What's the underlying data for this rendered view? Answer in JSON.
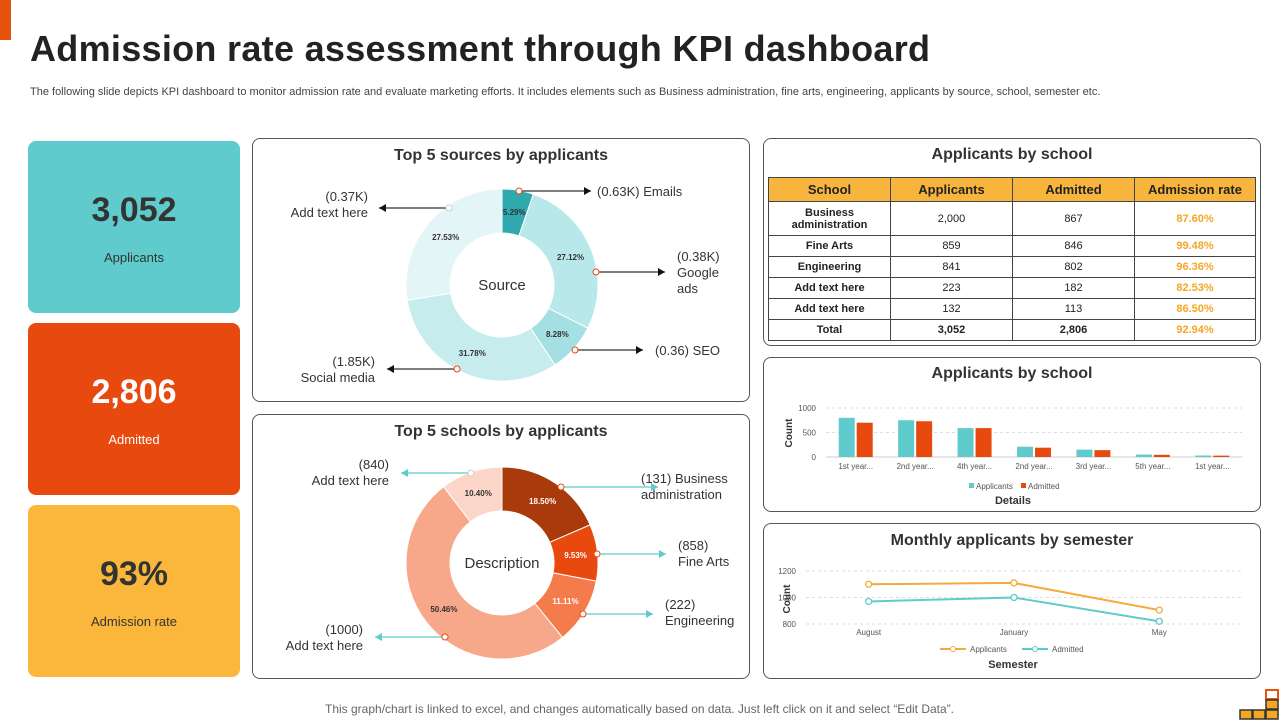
{
  "title": "Admission rate assessment through KPI dashboard",
  "subtitle": "The following slide depicts KPI dashboard to monitor admission rate and evaluate marketing efforts. It includes elements such as Business administration, fine arts, engineering, applicants by source, school, semester etc.",
  "footer": "This graph/chart is linked to excel,  and changes automatically based on data. Just left click on it and select “Edit Data”.",
  "colors": {
    "accent": "#e8520f",
    "teal": "#5fcbcc",
    "orange": "#e8490f",
    "yellow": "#fbb73b"
  },
  "kpis": [
    {
      "value": "3,052",
      "label": "Applicants",
      "color": "#5fcbcc"
    },
    {
      "value": "2,806",
      "label": "Admitted",
      "color": "#e8490f"
    },
    {
      "value": "93%",
      "label": "Admission rate",
      "color": "#fbb73b"
    }
  ],
  "table": {
    "title": "Applicants by school",
    "headers": [
      "School",
      "Applicants",
      "Admitted",
      "Admission rate"
    ],
    "rows": [
      [
        "Business administration",
        "2,000",
        "867",
        "87.60%"
      ],
      [
        "Fine Arts",
        "859",
        "846",
        "99.48%"
      ],
      [
        "Engineering",
        "841",
        "802",
        "96.36%"
      ],
      [
        "Add text here",
        "223",
        "182",
        "82.53%"
      ],
      [
        "Add text here",
        "132",
        "113",
        "86.50%"
      ],
      [
        "Total",
        "3,052",
        "2,806",
        "92.94%"
      ]
    ]
  },
  "chart_data": [
    {
      "type": "pie",
      "title": "Top 5 sources  by applicants",
      "center_label": "Source",
      "categories": [
        "Emails",
        "Google ads",
        "SEO",
        "Social media",
        "Add text here"
      ],
      "values": [
        5.29,
        27.12,
        8.28,
        31.78,
        27.53
      ],
      "slice_labels": [
        "5.29%",
        "27.12%",
        "8.28%",
        "31.78%",
        "27.53%"
      ],
      "callouts": [
        {
          "value": "(0.63K)",
          "name": "Emails"
        },
        {
          "value": "(0.38K)",
          "name": "Google ads"
        },
        {
          "value": "(0.36)",
          "name": "SEO"
        },
        {
          "value": "(1.85K)",
          "name": "Social media"
        },
        {
          "value": "(0.37K)",
          "name": "Add text here"
        }
      ],
      "colors": [
        "#2fa9ad",
        "#b8e8ea",
        "#a4dfe2",
        "#c7ecee",
        "#e3f5f6"
      ]
    },
    {
      "type": "pie",
      "title": "Top 5 schools  by applicants",
      "center_label": "Description",
      "categories": [
        "Business administration",
        "Fine Arts",
        "Engineering",
        "Add text here",
        "Add text here"
      ],
      "values": [
        18.5,
        9.53,
        11.11,
        50.46,
        10.4
      ],
      "slice_labels": [
        "18.50%",
        "9.53%",
        "11.11%",
        "50.46%",
        "10.40%"
      ],
      "callouts": [
        {
          "value": "(131)",
          "name": "Business administration"
        },
        {
          "value": "(858)",
          "name": "Fine Arts"
        },
        {
          "value": "(222)",
          "name": "Engineering"
        },
        {
          "value": "(1000)",
          "name": "Add text here"
        },
        {
          "value": "(840)",
          "name": "Add text here"
        }
      ],
      "colors": [
        "#a93a0c",
        "#e8490f",
        "#f47c4c",
        "#f7a78a",
        "#fbd6c9"
      ]
    },
    {
      "type": "bar",
      "title": "Applicants by school",
      "xlabel": "Details",
      "ylabel": "Count",
      "categories": [
        "1st year...",
        "2nd year...",
        "4th year...",
        "2nd year...",
        "3rd year...",
        "5th year...",
        "1st year..."
      ],
      "series": [
        {
          "name": "Applicants",
          "values": [
            800,
            750,
            590,
            210,
            150,
            50,
            30
          ],
          "color": "#5fcbcc"
        },
        {
          "name": "Admitted",
          "values": [
            700,
            730,
            590,
            190,
            140,
            45,
            28
          ],
          "color": "#e8490f"
        }
      ],
      "ylim": [
        0,
        1000
      ],
      "yticks": [
        0,
        500,
        1000
      ]
    },
    {
      "type": "line",
      "title": "Monthly applicants by semester",
      "xlabel": "Semester",
      "ylabel": "Count",
      "categories": [
        "August",
        "January",
        "May"
      ],
      "series": [
        {
          "name": "Applicants",
          "values": [
            1100,
            1110,
            905
          ],
          "color": "#f8a93b"
        },
        {
          "name": "Admitted",
          "values": [
            970,
            1000,
            820
          ],
          "color": "#5fcbcc"
        }
      ],
      "ylim": [
        800,
        1200
      ],
      "yticks": [
        800,
        1000,
        1200
      ]
    }
  ]
}
